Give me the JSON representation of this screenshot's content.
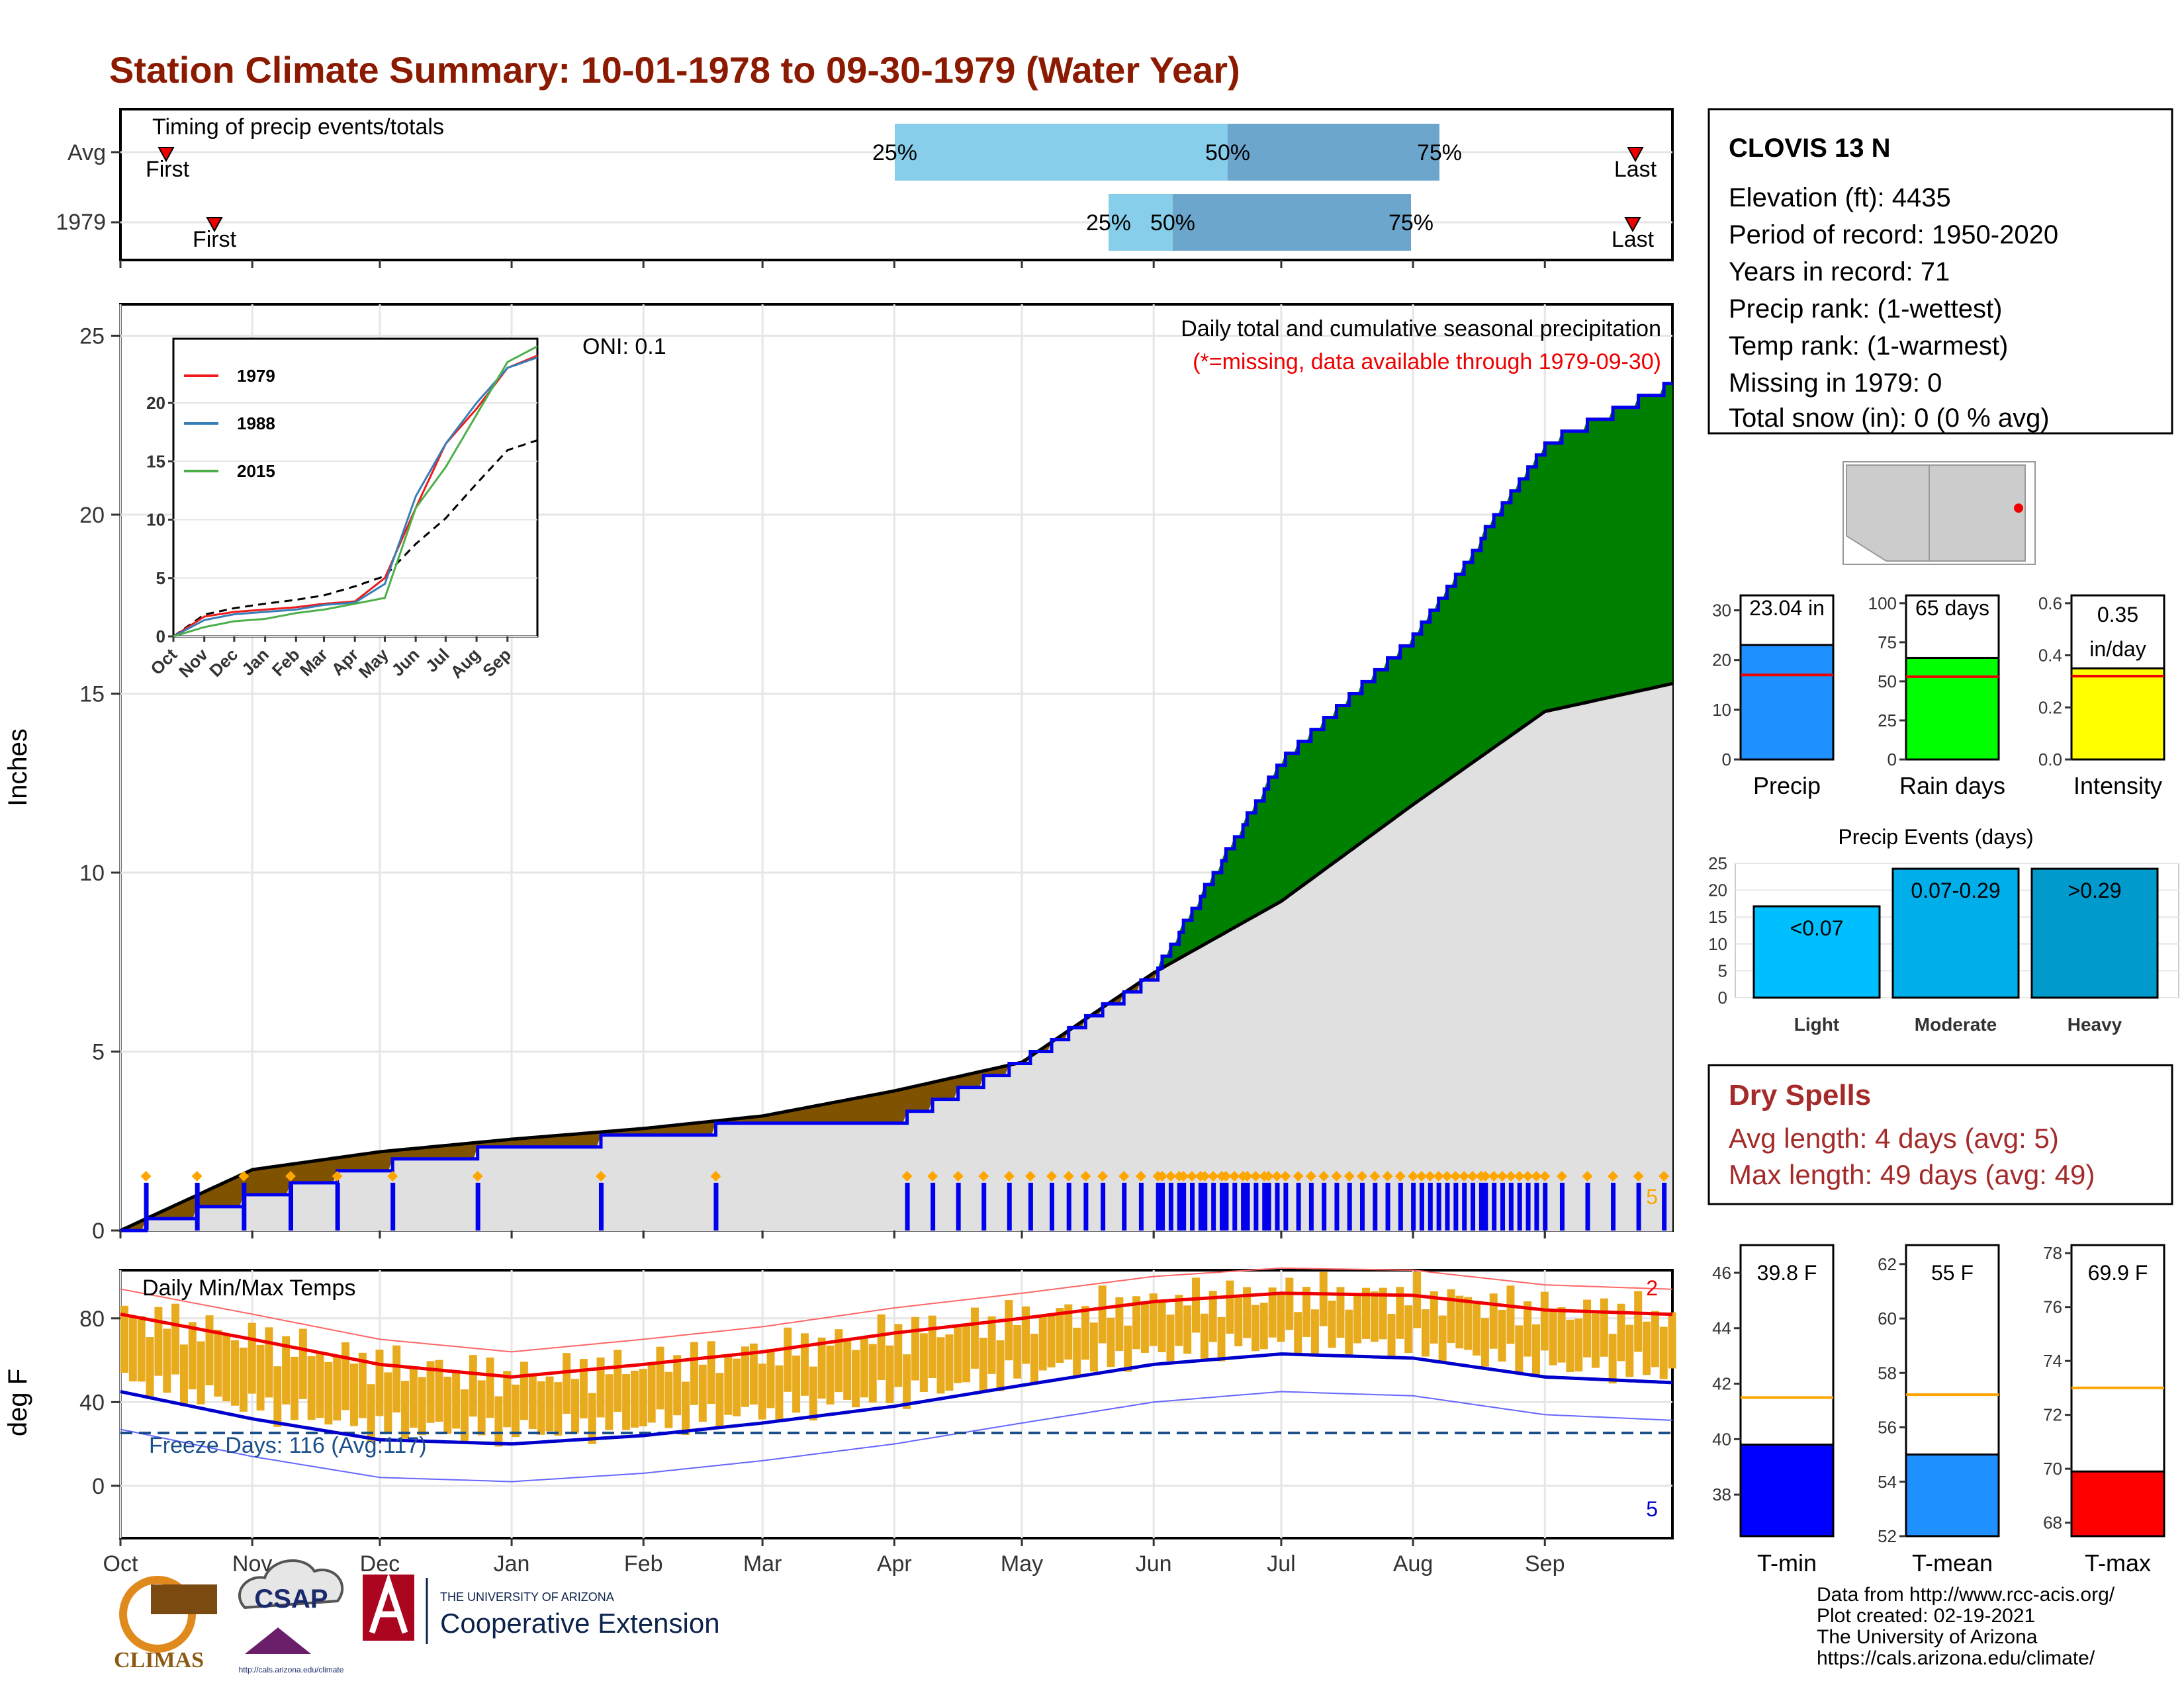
{
  "title": "Station Climate Summary: 10-01-1978 to 09-30-1979 (Water Year)",
  "colors": {
    "title": "#8b1a00",
    "precip_green": "#008000",
    "precip_brown": "#7f5200",
    "precip_gray": "#e0e0e0",
    "line_blue": "#0000ee",
    "temp_bar": "#e8ab1e",
    "tmax_avg": "#ee0000",
    "tmin_avg": "#0000cc",
    "freeze_line": "#1a4f8a"
  },
  "timing": {
    "title": "Timing of precip events/totals",
    "rows": [
      {
        "label": "Avg",
        "first": "First",
        "last": "Last",
        "p25": "25%",
        "p50": "50%",
        "p75": "75%"
      },
      {
        "label": "1979",
        "first": "First",
        "last": "Last",
        "p25": "25%",
        "p50": "50%",
        "p75": "75%"
      }
    ]
  },
  "precip_panel": {
    "ylabel": "Inches",
    "yticks": [
      "0",
      "5",
      "10",
      "15",
      "20",
      "25"
    ],
    "oni": "ONI: 0.1",
    "legend_title": "Daily total and cumulative seasonal precipitation",
    "missing_note": "(*=missing, data available through 1979-09-30)",
    "extreme_count": "5"
  },
  "inset": {
    "series": [
      "1979",
      "1988",
      "2015"
    ],
    "yticks": [
      "0",
      "5",
      "10",
      "15",
      "20"
    ],
    "months": [
      "Oct",
      "Nov",
      "Dec",
      "Jan",
      "Feb",
      "Mar",
      "Apr",
      "May",
      "Jun",
      "Jul",
      "Aug",
      "Sep"
    ]
  },
  "temp_panel": {
    "ylabel": "deg F",
    "title": "Daily Min/Max Temps",
    "yticks": [
      "0",
      "40",
      "80"
    ],
    "freeze_label": "Freeze Days: 116 (Avg:117)",
    "hot_count": "2",
    "cold_count": "5"
  },
  "months": [
    "Oct",
    "Nov",
    "Dec",
    "Jan",
    "Feb",
    "Mar",
    "Apr",
    "May",
    "Jun",
    "Jul",
    "Aug",
    "Sep"
  ],
  "station": {
    "name": "CLOVIS 13 N",
    "elevation": "Elevation (ft): 4435",
    "period": "Period of record: 1950-2020",
    "years": "Years in record: 71",
    "precip_rank": "Precip rank:  (1-wettest)",
    "temp_rank": "Temp rank:  (1-warmest)",
    "missing": "Missing in 1979: 0",
    "snow": "Total snow (in): 0 (0 % avg)"
  },
  "summary_bars": {
    "precip": {
      "label": "Precip",
      "value_text": "23.04 in",
      "value": 23.04,
      "avg": 17,
      "yticks": [
        "0",
        "10",
        "20",
        "30"
      ]
    },
    "rain_days": {
      "label": "Rain days",
      "value_text": "65 days",
      "value": 65,
      "avg": 53,
      "yticks": [
        "0",
        "25",
        "50",
        "75",
        "100"
      ]
    },
    "intensity": {
      "label": "Intensity",
      "value_text_1": "0.35",
      "value_text_2": "in/day",
      "value": 0.35,
      "avg": 0.32,
      "yticks": [
        "0.0",
        "0.2",
        "0.4",
        "0.6"
      ]
    }
  },
  "precip_events": {
    "title": "Precip Events (days)",
    "yticks": [
      "0",
      "5",
      "10",
      "15",
      "20",
      "25"
    ],
    "bars": [
      {
        "category": "Light",
        "text": "<0.07",
        "value": 17
      },
      {
        "category": "Moderate",
        "text": "0.07-0.29",
        "value": 24
      },
      {
        "category": "Heavy",
        "text": ">0.29",
        "value": 24
      }
    ]
  },
  "dry_spells": {
    "title": "Dry Spells",
    "avg": "Avg length: 4 days (avg: 5)",
    "max": "Max length: 49 days (avg: 49)"
  },
  "temp_bars": {
    "tmin": {
      "label": "T-min",
      "text": "39.8 F",
      "value": 39.8,
      "avg": 41.5,
      "yticks": [
        "38",
        "40",
        "42",
        "44",
        "46"
      ]
    },
    "tmean": {
      "label": "T-mean",
      "text": "55 F",
      "value": 55.0,
      "avg": 57.2,
      "yticks": [
        "52",
        "54",
        "56",
        "58",
        "60",
        "62"
      ]
    },
    "tmax": {
      "label": "T-max",
      "text": "69.9 F",
      "value": 69.9,
      "avg": 73.0,
      "yticks": [
        "68",
        "70",
        "72",
        "74",
        "76",
        "78"
      ]
    }
  },
  "footer": {
    "line1": "Data from http://www.rcc-acis.org/",
    "line2": "Plot created: 02-19-2021",
    "line3": "The University of Arizona",
    "line4": "https://cals.arizona.edu/climate/",
    "logo_climas": "CLIMAS",
    "logo_csap": "CSAP",
    "csap_url": "http://cals.arizona.edu/climate",
    "ua_small": "THE UNIVERSITY OF ARIZONA",
    "ua_big": "Cooperative Extension"
  },
  "chart_data": [
    {
      "type": "area",
      "title": "Daily total and cumulative seasonal precipitation",
      "ylabel": "Inches",
      "ylim": [
        0,
        25
      ],
      "x": [
        "Oct",
        "Nov",
        "Dec",
        "Jan",
        "Feb",
        "Mar",
        "Apr",
        "May",
        "Jun",
        "Jul",
        "Aug",
        "Sep"
      ],
      "series": [
        {
          "name": "1979",
          "values": [
            0.0,
            0.9,
            1.8,
            2.3,
            2.6,
            3.0,
            3.0,
            4.7,
            7.1,
            13.1,
            16.5,
            22.0
          ]
        },
        {
          "values": [
            0.0,
            1.7,
            2.2,
            2.55,
            2.85,
            3.2,
            3.9,
            4.7,
            7.2,
            9.2,
            11.9,
            14.5
          ]
        }
      ],
      "extremes": 5
    },
    {
      "type": "line",
      "ylim": [
        0,
        25
      ],
      "x": [
        "Oct",
        "Nov",
        "Dec",
        "Jan",
        "Feb",
        "Mar",
        "Apr",
        "May",
        "Jun",
        "Jul",
        "Aug",
        "Sep"
      ],
      "series": [
        {
          "name": "1979",
          "values": [
            0.0,
            1.7,
            2.1,
            2.3,
            2.5,
            2.8,
            3.0,
            5.0,
            11.0,
            16.5,
            19.5,
            23.0
          ]
        },
        {
          "name": "1988",
          "values": [
            0.0,
            1.4,
            1.9,
            2.1,
            2.3,
            2.7,
            2.9,
            4.5,
            12.0,
            16.5,
            20.0,
            23.0
          ]
        },
        {
          "name": "2015",
          "values": [
            0.0,
            0.8,
            1.3,
            1.5,
            2.0,
            2.3,
            2.8,
            3.3,
            11.0,
            14.5,
            19.0,
            23.5
          ]
        }
      ]
    },
    {
      "type": "bar",
      "title": "Daily Min/Max Temps",
      "ylabel": "deg F",
      "x": [
        "Oct",
        "Nov",
        "Dec",
        "Jan",
        "Feb",
        "Mar",
        "Apr",
        "May",
        "Jun",
        "Jul",
        "Aug",
        "Sep"
      ],
      "series": [
        {
          "values": [
            82,
            70,
            58,
            52,
            58,
            64,
            73,
            80,
            88,
            92,
            91,
            84
          ]
        },
        {
          "values": [
            45,
            32,
            22,
            20,
            24,
            30,
            38,
            48,
            58,
            63,
            61,
            52
          ]
        }
      ],
      "freeze_days": 116,
      "freeze_days_avg": 117
    }
  ]
}
